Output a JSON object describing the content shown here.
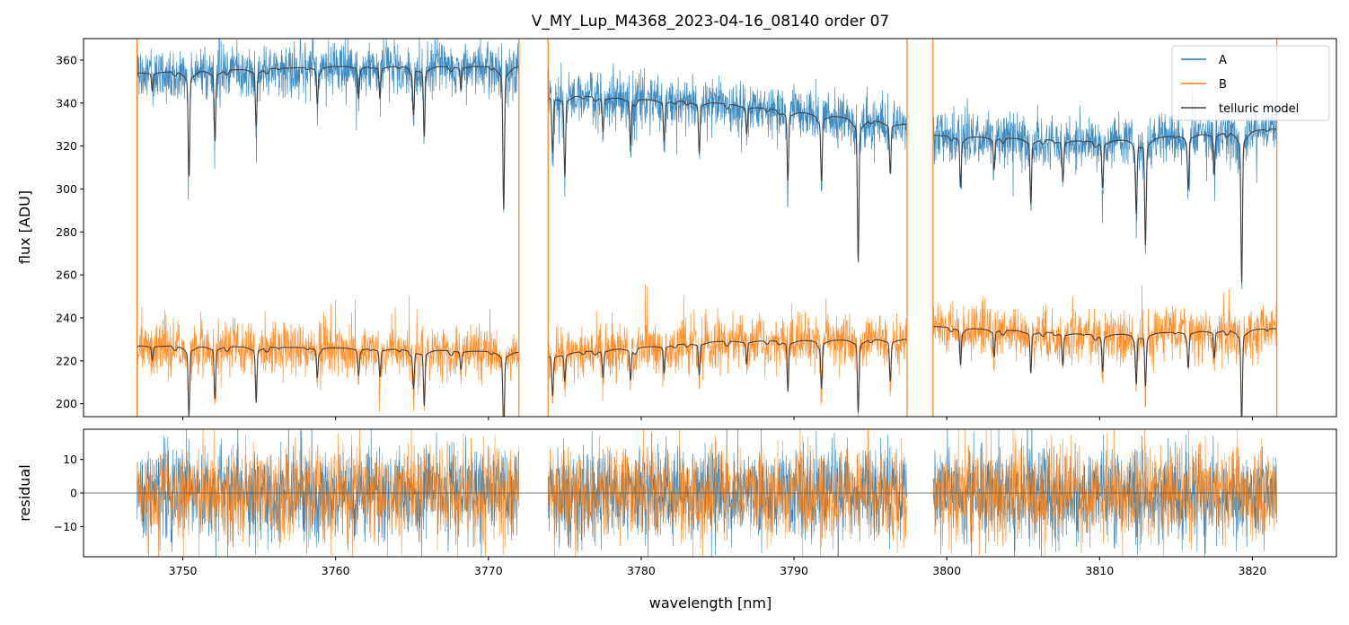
{
  "chart_data": [
    {
      "type": "line",
      "title": "V_MY_Lup_M4368_2023-04-16_08140  order 07",
      "xlabel": "",
      "ylabel": "flux [ADU]",
      "xlim": [
        3743.5,
        3825.5
      ],
      "ylim": [
        194,
        370
      ],
      "x_ticks": [
        3750,
        3760,
        3770,
        3780,
        3790,
        3800,
        3810,
        3820
      ],
      "x_tick_labels_visible": false,
      "y_ticks": [
        200,
        220,
        240,
        260,
        280,
        300,
        320,
        340,
        360
      ],
      "y_tick_labels": [
        "200",
        "220",
        "240",
        "260",
        "280",
        "300",
        "320",
        "340",
        "360"
      ],
      "grid": false,
      "legend": {
        "position": "top-right",
        "entries": [
          {
            "name": "A",
            "color": "#1f77b4"
          },
          {
            "name": "B",
            "color": "#ff7f0e"
          },
          {
            "name": "telluric model",
            "color": "#404040"
          }
        ]
      },
      "segments": [
        [
          3747.0,
          3772.0
        ],
        [
          3773.9,
          3797.4
        ],
        [
          3799.1,
          3821.6
        ]
      ],
      "continuum": {
        "A": [
          {
            "x": [
              3747.0,
              3760.0,
              3772.0
            ],
            "y": [
              354,
              357,
              357
            ]
          },
          {
            "x": [
              3773.9,
              3785.0,
              3797.4
            ],
            "y": [
              344,
              340,
              330
            ]
          },
          {
            "x": [
              3799.1,
              3810.0,
              3821.6
            ],
            "y": [
              325,
              322,
              328
            ]
          }
        ],
        "B": [
          {
            "x": [
              3747.0,
              3760.0,
              3772.0
            ],
            "y": [
              227,
              226,
              224
            ]
          },
          {
            "x": [
              3773.9,
              3785.0,
              3797.4
            ],
            "y": [
              223,
              229,
              230
            ]
          },
          {
            "x": [
              3799.1,
              3810.0,
              3821.6
            ],
            "y": [
              236,
              232,
              235
            ]
          }
        ]
      },
      "absorption_lines_nm": [
        3748.0,
        3750.4,
        3752.1,
        3754.8,
        3758.8,
        3761.5,
        3762.9,
        3765.1,
        3765.8,
        3768.2,
        3771.0,
        3774.2,
        3775.0,
        3777.5,
        3779.3,
        3781.5,
        3783.8,
        3786.9,
        3789.6,
        3791.8,
        3794.2,
        3796.3,
        3800.9,
        3803.1,
        3805.5,
        3807.6,
        3810.2,
        3812.4,
        3813.0,
        3815.8,
        3817.5,
        3819.3
      ],
      "absorption_depth_A": [
        8,
        45,
        30,
        25,
        15,
        12,
        14,
        20,
        30,
        10,
        60,
        25,
        35,
        15,
        20,
        18,
        22,
        12,
        30,
        28,
        60,
        22,
        22,
        14,
        28,
        18,
        20,
        30,
        45,
        22,
        18,
        65
      ],
      "absorption_depth_B": [
        6,
        30,
        22,
        24,
        12,
        10,
        12,
        16,
        24,
        8,
        35,
        18,
        12,
        12,
        14,
        12,
        14,
        10,
        22,
        20,
        30,
        18,
        16,
        12,
        18,
        14,
        16,
        20,
        22,
        14,
        12,
        40
      ],
      "noise_std": {
        "A": 6,
        "B": 6
      },
      "series": [
        {
          "name": "A",
          "color": "#1f77b4"
        },
        {
          "name": "B",
          "color": "#ff7f0e"
        },
        {
          "name": "telluric model",
          "color": "#404040"
        }
      ]
    },
    {
      "type": "line",
      "title": "",
      "xlabel": "wavelength [nm]",
      "ylabel": "residual",
      "xlim": [
        3743.5,
        3825.5
      ],
      "ylim": [
        -19,
        19
      ],
      "x_ticks": [
        3750,
        3760,
        3770,
        3780,
        3790,
        3800,
        3810,
        3820
      ],
      "x_tick_labels": [
        "3750",
        "3760",
        "3770",
        "3780",
        "3790",
        "3800",
        "3810",
        "3820"
      ],
      "y_ticks": [
        -10,
        0,
        10
      ],
      "y_tick_labels": [
        "−10",
        "0",
        "10"
      ],
      "grid": false,
      "zero_line": 0,
      "noise_std": {
        "A": 7,
        "B": 7
      },
      "series": [
        {
          "name": "A",
          "color": "#1f77b4"
        },
        {
          "name": "B",
          "color": "#ff7f0e"
        }
      ]
    }
  ]
}
